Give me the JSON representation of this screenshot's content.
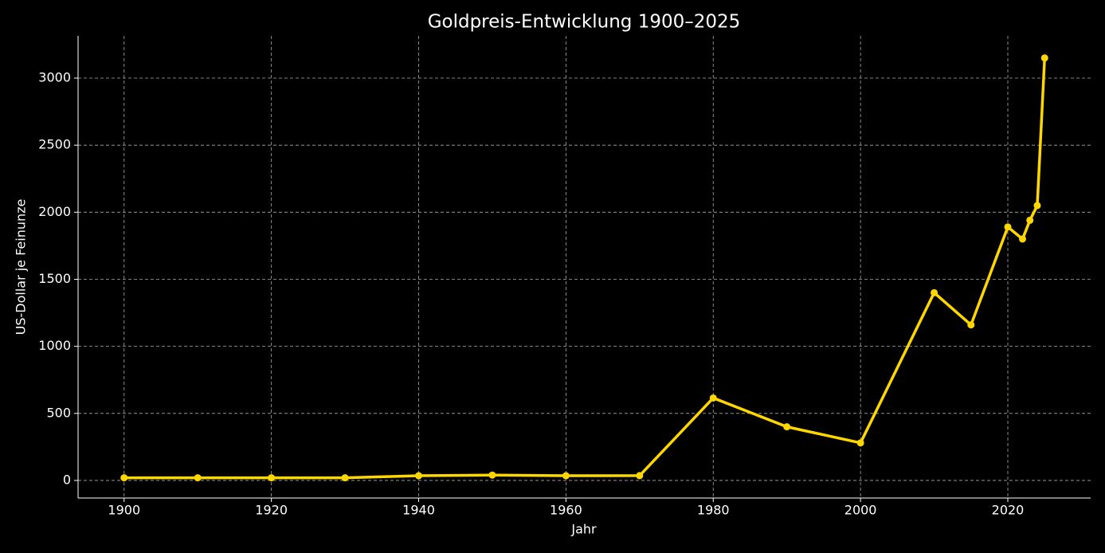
{
  "chart_data": {
    "type": "line",
    "title": "Goldpreis-Entwicklung 1900–2025",
    "x_label": "Jahr",
    "y_label": "US-Dollar je Feinunze",
    "x": [
      1900,
      1910,
      1920,
      1930,
      1940,
      1950,
      1960,
      1970,
      1980,
      1990,
      2000,
      2010,
      2015,
      2020,
      2022,
      2023,
      2024,
      2025
    ],
    "series": [
      {
        "name": "Goldpreis",
        "color": "#ffd700",
        "values": [
          20,
          20,
          20,
          20,
          35,
          40,
          35,
          36,
          615,
          400,
          280,
          1400,
          1160,
          1890,
          1800,
          1940,
          2050,
          3150
        ]
      }
    ],
    "xlim": [
      1893.75,
      2031.25
    ],
    "ylim": [
      -131,
      3315
    ],
    "xticks": [
      1900,
      1920,
      1940,
      1960,
      1980,
      2000,
      2020
    ],
    "yticks": [
      0,
      500,
      1000,
      1500,
      2000,
      2500,
      3000
    ],
    "grid": true
  }
}
